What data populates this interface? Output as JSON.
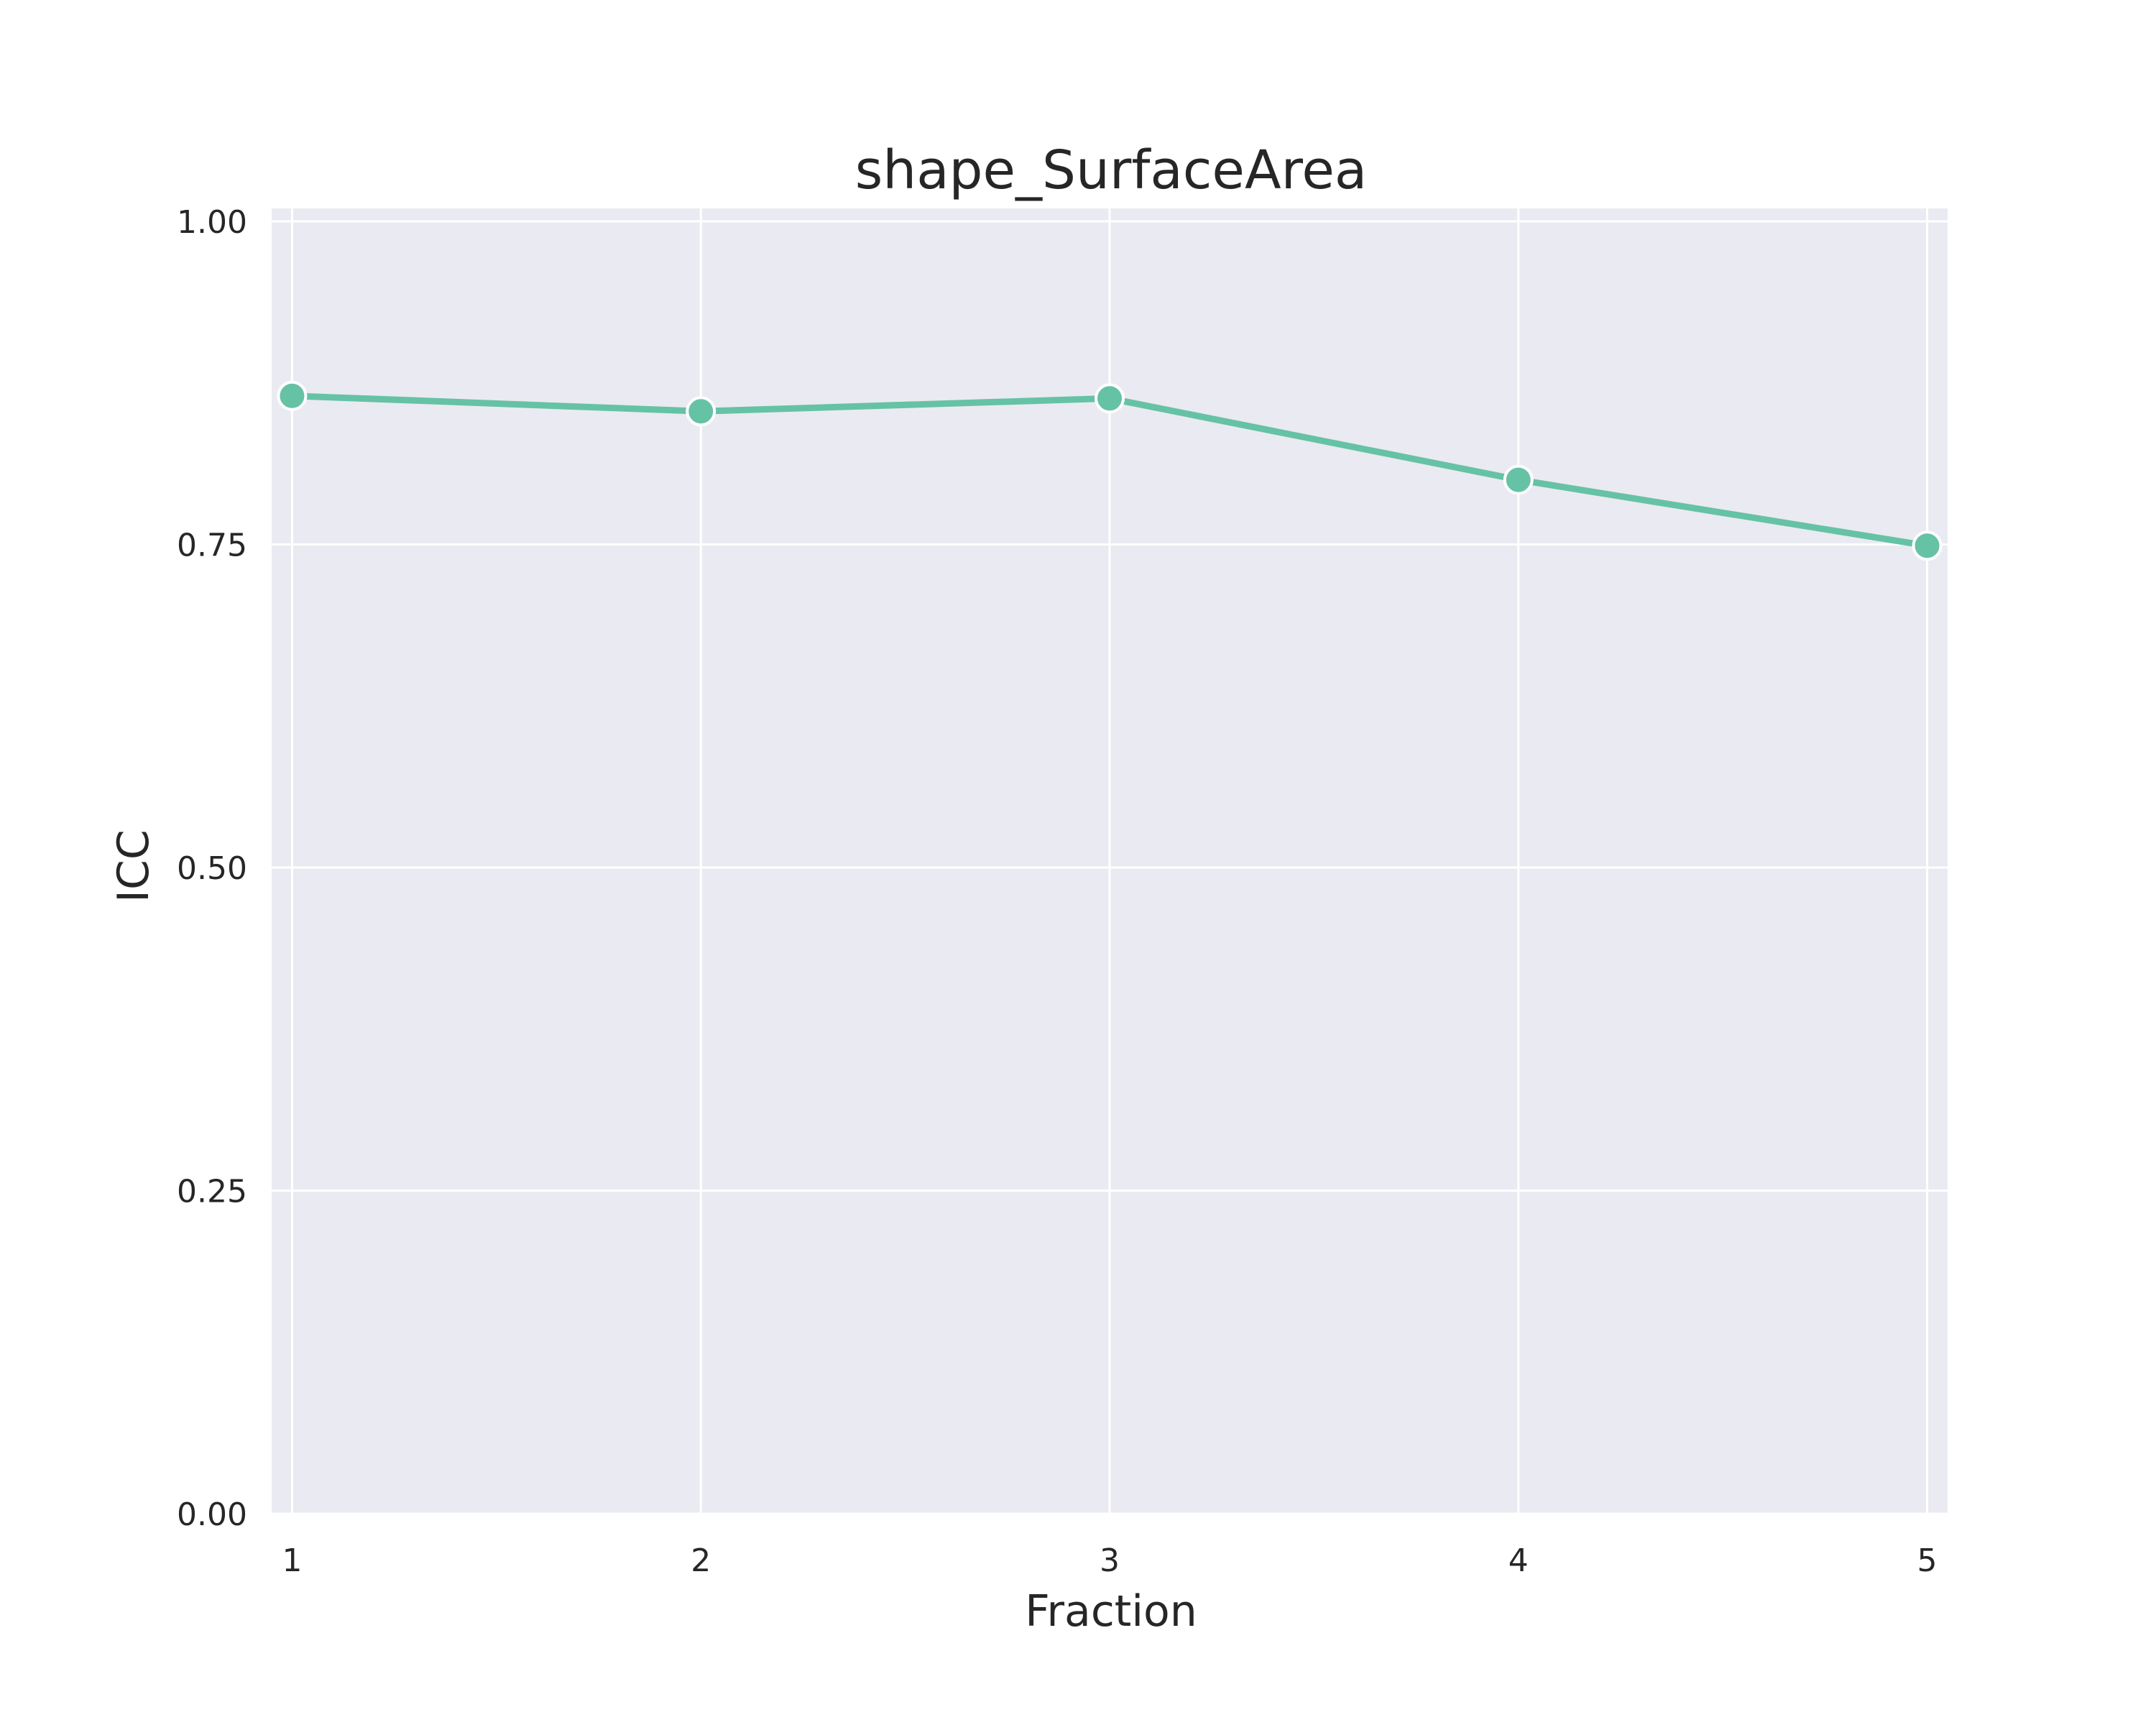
{
  "chart_data": {
    "type": "line",
    "title": "shape_SurfaceArea",
    "xlabel": "Fraction",
    "ylabel": "ICC",
    "x": [
      1,
      2,
      3,
      4,
      5
    ],
    "x_tick_labels": [
      "1",
      "2",
      "3",
      "4",
      "5"
    ],
    "xlim": [
      0.95,
      5.05
    ],
    "ylim": [
      0.0,
      1.01
    ],
    "y_ticks": [
      0.0,
      0.25,
      0.5,
      0.75,
      1.0
    ],
    "y_tick_labels": [
      "0.00",
      "0.25",
      "0.50",
      "0.75",
      "1.00"
    ],
    "series": [
      {
        "values": [
          0.865,
          0.853,
          0.863,
          0.8,
          0.749
        ],
        "color": "#66c2a5",
        "marker": "circle"
      }
    ],
    "grid": true,
    "background_color": "#eaeaf2",
    "grid_color": "#ffffff"
  }
}
